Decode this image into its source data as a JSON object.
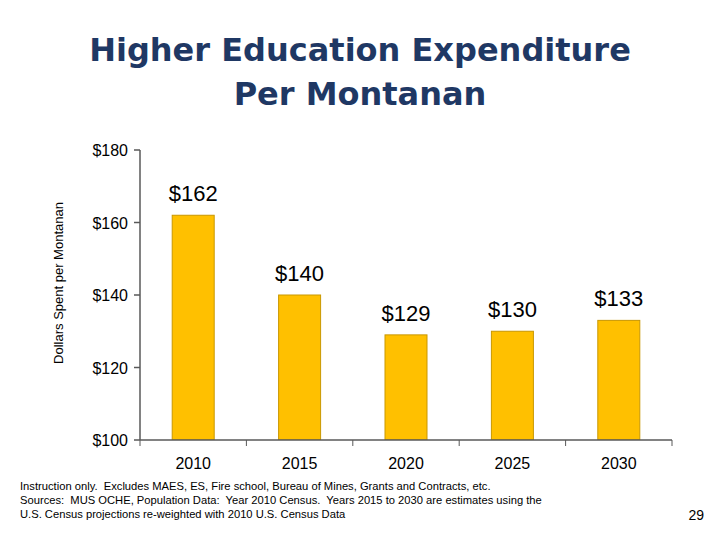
{
  "chart_data": {
    "type": "bar",
    "title": "Higher Education Expenditure Per Montanan",
    "y_label": "Dollars Spent per Montanan",
    "categories": [
      "2010",
      "2015",
      "2020",
      "2025",
      "2030"
    ],
    "values": [
      162,
      140,
      129,
      130,
      133
    ],
    "value_labels": [
      "$162",
      "$140",
      "$129",
      "$130",
      "$133"
    ],
    "color": "#FFC000",
    "ylim": [
      100,
      180
    ],
    "yticks": [
      {
        "value": 100,
        "label": "$100"
      },
      {
        "value": 120,
        "label": "$120"
      },
      {
        "value": 140,
        "label": "$140"
      },
      {
        "value": 160,
        "label": "$160"
      },
      {
        "value": 180,
        "label": "$180"
      }
    ],
    "grid": false,
    "data_labels": true,
    "notes": [
      "Instruction only.  Excludes MAES, ES, Fire school, Bureau of Mines, Grants and Contracts, etc.",
      "Sources:  MUS OCHE, Population Data:  Year 2010 Census.  Years 2015 to 2030 are estimates using the",
      "U.S. Census projections re-weighted with 2010 U.S. Census Data"
    ],
    "page_number": "29"
  }
}
